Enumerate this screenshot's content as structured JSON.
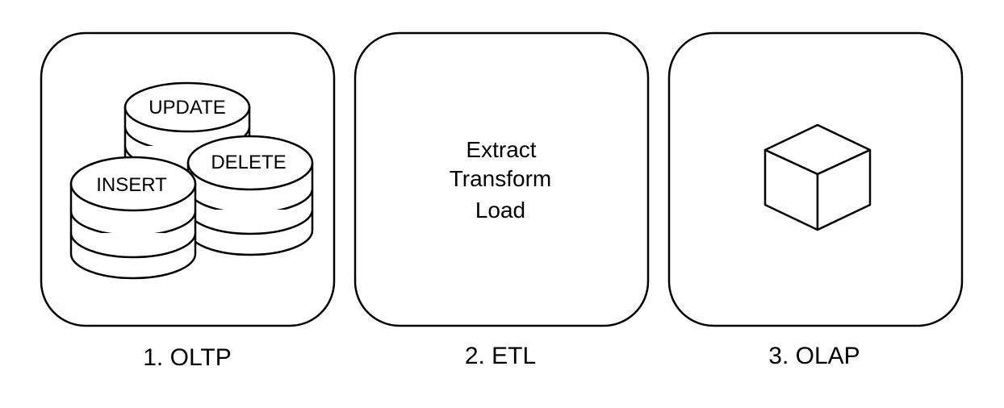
{
  "panels": {
    "oltp": {
      "caption": "1. OLTP",
      "databases": [
        {
          "label": "UPDATE"
        },
        {
          "label": "DELETE"
        },
        {
          "label": "INSERT"
        }
      ],
      "icon": "database-stack-icon"
    },
    "etl": {
      "caption": "2. ETL",
      "lines": [
        "Extract",
        "Transform",
        "Load"
      ]
    },
    "olap": {
      "caption": "3. OLAP",
      "icon": "cube-icon"
    }
  },
  "colors": {
    "stroke": "#000000",
    "fill": "#ffffff",
    "background": "#ffffff"
  }
}
